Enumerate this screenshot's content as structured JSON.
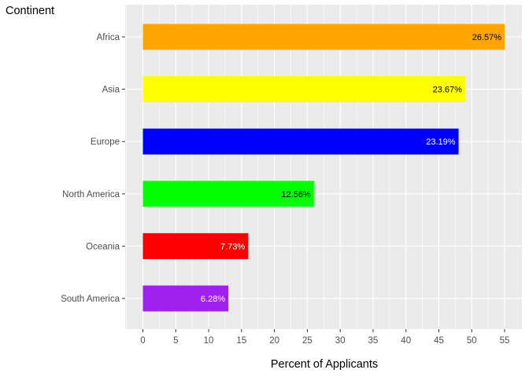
{
  "chart_data": {
    "type": "bar",
    "orientation": "horizontal",
    "title": "",
    "ylabel": "Continent",
    "xlabel": "Percent of Applicants",
    "categories": [
      "Africa",
      "Asia",
      "Europe",
      "North America",
      "Oceania",
      "South America"
    ],
    "values": [
      55,
      49,
      48,
      26,
      16,
      13
    ],
    "data_labels": [
      "26.57%",
      "23.67%",
      "23.19%",
      "12.56%",
      "7.73%",
      "6.28%"
    ],
    "colors": [
      "#FFA500",
      "#FFFF00",
      "#0000FF",
      "#00FF00",
      "#FF0000",
      "#A020F0"
    ],
    "label_colors": [
      "#000000",
      "#000000",
      "#FFFFFF",
      "#000000",
      "#FFFFFF",
      "#FFFFFF"
    ],
    "xticks": [
      0,
      5,
      10,
      15,
      20,
      25,
      30,
      35,
      40,
      45,
      50,
      55
    ],
    "xlim": [
      -2.7,
      57.9
    ],
    "grid": true,
    "legend": "none",
    "panel_background": "#EBEBEB",
    "grid_color": "#FFFFFF"
  }
}
